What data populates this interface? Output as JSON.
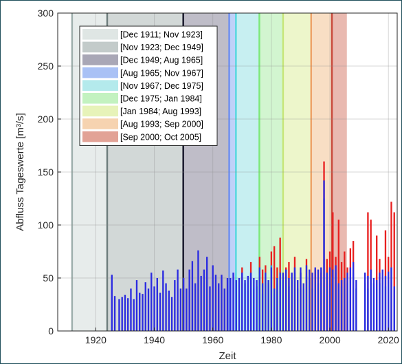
{
  "chart_data": {
    "type": "bar",
    "xlabel": "Zeit",
    "ylabel": "Abfluss Tageswerte [m³/s]",
    "xlim": [
      1907,
      2023
    ],
    "ylim": [
      0,
      300
    ],
    "x_ticks": [
      "1920",
      "1940",
      "1960",
      "1980",
      "2000",
      "2020"
    ],
    "y_ticks": [
      "0",
      "50",
      "100",
      "150",
      "200",
      "250",
      "300"
    ],
    "grid": true,
    "legend_position": "top-left",
    "periods": [
      {
        "label": "[Dec 1911; Nov 1923]",
        "start": 1911.9,
        "end": 1923.9,
        "color": "#dfe6e4",
        "edge": "#9fb0ad"
      },
      {
        "label": "[Nov 1923; Dec 1949]",
        "start": 1923.9,
        "end": 1949.9,
        "color": "#c3cbca",
        "edge": "#6f7f7e"
      },
      {
        "label": "[Dec 1949; Aug 1965]",
        "start": 1949.9,
        "end": 1965.6,
        "color": "#a9a7b6",
        "edge": "#1a1a2e"
      },
      {
        "label": "[Aug 1965; Nov 1967]",
        "start": 1965.6,
        "end": 1967.9,
        "color": "#a9c1f5",
        "edge": "#6f8ff0"
      },
      {
        "label": "[Nov 1967; Dec 1975]",
        "start": 1967.9,
        "end": 1975.9,
        "color": "#b4eaec",
        "edge": "#58d8df"
      },
      {
        "label": "[Dec 1975; Jan 1984]",
        "start": 1975.9,
        "end": 1984.0,
        "color": "#c3f2c0",
        "edge": "#7de87a"
      },
      {
        "label": "[Jan 1984; Aug 1993]",
        "start": 1984.0,
        "end": 1993.6,
        "color": "#e7f3b9",
        "edge": "#c7e67a"
      },
      {
        "label": "[Aug 1993; Sep 2000]",
        "start": 1993.6,
        "end": 2000.7,
        "color": "#f6d3b0",
        "edge": "#eea26a"
      },
      {
        "label": "[Sep 2000; Oct 2005]",
        "start": 2000.7,
        "end": 2005.8,
        "color": "#e2a296",
        "edge": "#c94a3c"
      }
    ],
    "series": [
      {
        "color": "#2b2be0",
        "x": [
          1925.5,
          1926.5,
          1928,
          1929,
          1930,
          1931,
          1932,
          1933,
          1934,
          1935,
          1936,
          1937,
          1938,
          1939,
          1940,
          1941,
          1942,
          1943,
          1944,
          1945,
          1946,
          1947,
          1948,
          1949,
          1950,
          1951,
          1952,
          1953,
          1954,
          1955,
          1956,
          1957,
          1958,
          1959,
          1960,
          1961,
          1962,
          1963,
          1964,
          1965,
          1966,
          1967,
          1968,
          1969,
          1970,
          1971,
          1972,
          1973,
          1974,
          1975,
          1976,
          1977,
          1978,
          1979,
          1980,
          1981,
          1982,
          1983,
          1984,
          1985,
          1986,
          1987,
          1988,
          1989,
          1990,
          1991,
          1992,
          1993,
          1994,
          1995,
          1996,
          1997,
          1998,
          1999,
          2000,
          2001,
          2002,
          2003,
          2004,
          2005,
          2006,
          2007,
          2008,
          2009,
          2012,
          2013,
          2014,
          2015,
          2016,
          2017,
          2018,
          2019,
          2020,
          2021,
          2022
        ],
        "y": [
          53,
          33,
          30,
          32,
          34,
          31,
          40,
          30,
          48,
          36,
          35,
          46,
          40,
          55,
          42,
          50,
          36,
          57,
          45,
          38,
          32,
          48,
          58,
          40,
          50,
          40,
          58,
          66,
          45,
          76,
          52,
          58,
          70,
          42,
          62,
          53,
          45,
          53,
          40,
          50,
          50,
          55,
          48,
          50,
          55,
          48,
          52,
          55,
          50,
          48,
          60,
          45,
          55,
          48,
          60,
          40,
          50,
          55,
          55,
          58,
          50,
          55,
          60,
          48,
          60,
          45,
          62,
          58,
          55,
          60,
          58,
          60,
          142,
          55,
          60,
          58,
          62,
          45,
          48,
          50,
          55,
          60,
          65,
          48,
          55,
          52,
          58,
          50,
          48,
          55,
          58,
          52,
          56,
          60,
          42
        ]
      },
      {
        "color": "#2e95e8",
        "x": [
          1970,
          1971,
          1972,
          1973,
          1974,
          1975,
          1976,
          1977,
          1978,
          1979,
          1980,
          1981,
          1982,
          1983,
          1984,
          1985,
          1986,
          1987,
          1988,
          1989,
          1990,
          1991,
          1992,
          1993,
          1994,
          1995,
          1996,
          1997,
          1998,
          1999,
          2000,
          2001,
          2002,
          2003,
          2004,
          2005,
          2006,
          2007,
          2008,
          2009,
          2012,
          2013,
          2014,
          2015,
          2016,
          2017,
          2018,
          2019,
          2020,
          2021,
          2022
        ],
        "y": [
          40,
          45,
          38,
          50,
          40,
          42,
          55,
          35,
          55,
          45,
          62,
          35,
          45,
          48,
          48,
          50,
          42,
          48,
          55,
          40,
          55,
          40,
          52,
          48,
          40,
          45,
          45,
          48,
          125,
          40,
          45,
          50,
          55,
          40,
          42,
          40,
          45,
          50,
          55,
          40,
          45,
          40,
          50,
          45,
          40,
          45,
          50,
          42,
          45,
          60,
          30
        ]
      },
      {
        "color": "#e82020",
        "x": [
          1970,
          1973,
          1976,
          1977,
          1978,
          1980,
          1981,
          1982,
          1983,
          1985,
          1986,
          1988,
          1990,
          1992,
          1993,
          1995,
          1997,
          1998,
          1999,
          2000,
          2001,
          2002,
          2003,
          2004,
          2005,
          2006,
          2007,
          2008,
          2013,
          2014,
          2016,
          2017,
          2019,
          2020,
          2021,
          2022
        ],
        "y": [
          60,
          65,
          70,
          58,
          62,
          75,
          80,
          60,
          88,
          60,
          65,
          70,
          55,
          68,
          50,
          58,
          55,
          160,
          68,
          75,
          112,
          70,
          105,
          65,
          75,
          60,
          78,
          85,
          112,
          105,
          90,
          68,
          95,
          70,
          122,
          112
        ]
      }
    ]
  }
}
